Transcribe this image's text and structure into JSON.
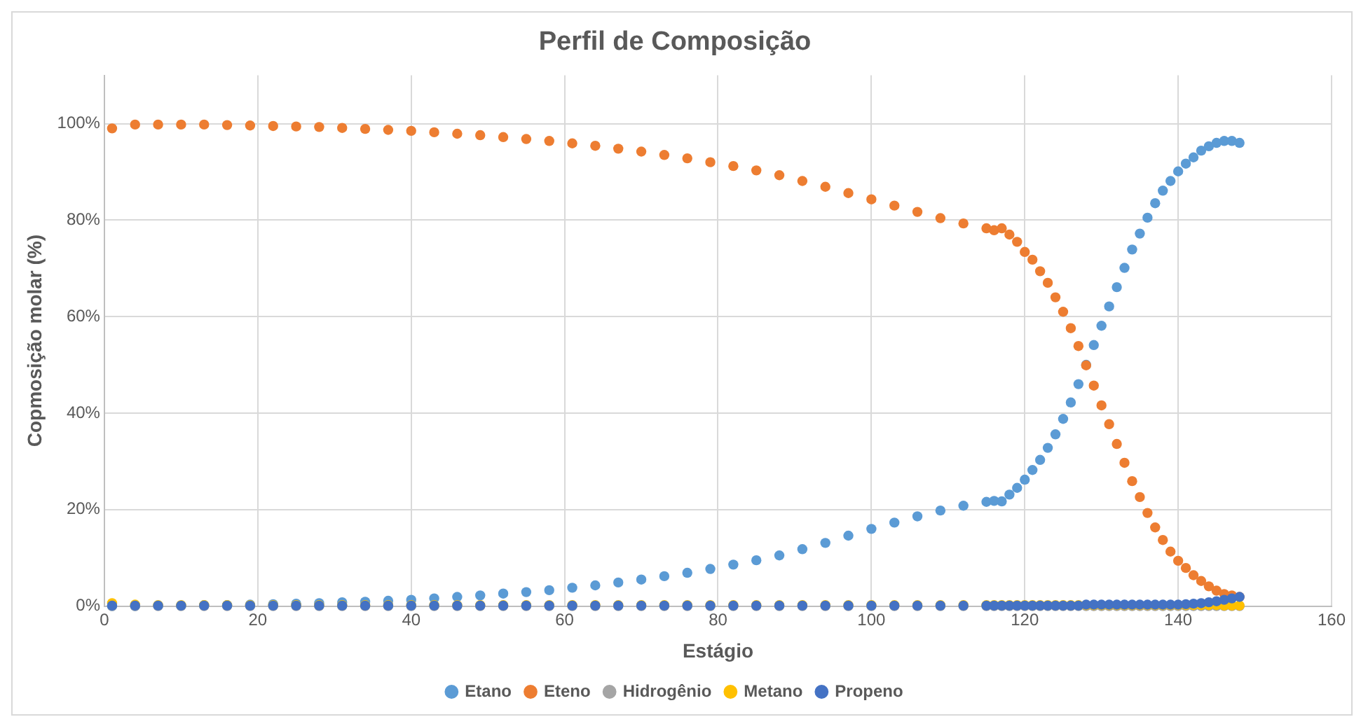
{
  "chart_data": {
    "type": "scatter",
    "title": "Perfil de Composição",
    "xlabel": "Estágio",
    "ylabel": "Copmosição molar (%)",
    "x": [
      1,
      4,
      7,
      10,
      13,
      16,
      19,
      22,
      25,
      28,
      31,
      34,
      37,
      40,
      43,
      46,
      49,
      52,
      55,
      58,
      61,
      64,
      67,
      70,
      73,
      76,
      79,
      82,
      85,
      88,
      91,
      94,
      97,
      100,
      103,
      106,
      109,
      112,
      115,
      116,
      117,
      118,
      119,
      120,
      121,
      122,
      123,
      124,
      125,
      126,
      127,
      128,
      129,
      130,
      131,
      132,
      133,
      134,
      135,
      136,
      137,
      138,
      139,
      140,
      141,
      142,
      143,
      144,
      145,
      146,
      147,
      148
    ],
    "series": [
      {
        "name": "Etano",
        "color": "#5b9bd5",
        "values": [
          0,
          0,
          0.1,
          0.1,
          0.2,
          0.2,
          0.3,
          0.4,
          0.5,
          0.6,
          0.8,
          0.9,
          1.1,
          1.3,
          1.6,
          1.9,
          2.2,
          2.6,
          2.9,
          3.3,
          3.8,
          4.3,
          4.9,
          5.5,
          6.2,
          6.9,
          7.7,
          8.6,
          9.5,
          10.5,
          11.8,
          13.1,
          14.6,
          16.0,
          17.3,
          18.6,
          19.8,
          20.8,
          21.6,
          21.8,
          21.7,
          23.1,
          24.5,
          26.2,
          28.2,
          30.3,
          32.8,
          35.6,
          38.8,
          42.2,
          46.0,
          50.0,
          54.1,
          58.1,
          62.1,
          66.1,
          70.1,
          73.9,
          77.2,
          80.5,
          83.5,
          86.1,
          88.1,
          90.1,
          91.7,
          93.0,
          94.4,
          95.3,
          96.0,
          96.4,
          96.4,
          96.0
        ]
      },
      {
        "name": "Eteno",
        "color": "#ed7d31",
        "values": [
          99.0,
          99.8,
          99.8,
          99.8,
          99.8,
          99.7,
          99.6,
          99.5,
          99.4,
          99.3,
          99.1,
          98.9,
          98.7,
          98.5,
          98.2,
          97.9,
          97.6,
          97.2,
          96.8,
          96.4,
          95.9,
          95.4,
          94.8,
          94.2,
          93.5,
          92.8,
          92.0,
          91.2,
          90.3,
          89.3,
          88.1,
          86.9,
          85.6,
          84.3,
          83.0,
          81.7,
          80.4,
          79.3,
          78.3,
          77.9,
          78.3,
          77.0,
          75.5,
          73.4,
          71.8,
          69.4,
          67.0,
          64.0,
          61.0,
          57.6,
          53.9,
          49.9,
          45.7,
          41.6,
          37.7,
          33.6,
          29.7,
          25.9,
          22.6,
          19.3,
          16.3,
          13.7,
          11.3,
          9.4,
          7.9,
          6.4,
          5.2,
          4.1,
          3.2,
          2.5,
          2.2,
          1.9
        ]
      },
      {
        "name": "Hidrogênio",
        "color": "#a5a5a5",
        "values": [
          0,
          0,
          0,
          0,
          0,
          0,
          0,
          0,
          0,
          0,
          0,
          0,
          0,
          0,
          0,
          0,
          0,
          0,
          0,
          0,
          0,
          0,
          0,
          0,
          0,
          0,
          0,
          0,
          0,
          0,
          0,
          0,
          0,
          0,
          0,
          0,
          0,
          0,
          0,
          0,
          0,
          0,
          0,
          0,
          0,
          0,
          0,
          0,
          0,
          0,
          0,
          0,
          0,
          0,
          0,
          0,
          0,
          0,
          0,
          0,
          0,
          0,
          0,
          0,
          0,
          0,
          0,
          0,
          0,
          0,
          0,
          0
        ]
      },
      {
        "name": "Metano",
        "color": "#ffc000",
        "values": [
          0.6,
          0.3,
          0.2,
          0.2,
          0.2,
          0.2,
          0.2,
          0.2,
          0.2,
          0.2,
          0.2,
          0.2,
          0.2,
          0.2,
          0.2,
          0.2,
          0.2,
          0.2,
          0.2,
          0.2,
          0.2,
          0.2,
          0.2,
          0.2,
          0.2,
          0.2,
          0.2,
          0.2,
          0.2,
          0.2,
          0.2,
          0.2,
          0.2,
          0.2,
          0.2,
          0.2,
          0.2,
          0.2,
          0.2,
          0.2,
          0.2,
          0.2,
          0.2,
          0.2,
          0.2,
          0.2,
          0.2,
          0.2,
          0.2,
          0.2,
          0.2,
          0.2,
          0.2,
          0.2,
          0.2,
          0.2,
          0.2,
          0.2,
          0.2,
          0.2,
          0.2,
          0.2,
          0.2,
          0.2,
          0.2,
          0.2,
          0.2,
          0.2,
          0.2,
          0.1,
          0.1,
          0.1
        ]
      },
      {
        "name": "Propeno",
        "color": "#4472c4",
        "values": [
          0.1,
          0.1,
          0.1,
          0.1,
          0.1,
          0.1,
          0.1,
          0.1,
          0.1,
          0.1,
          0.1,
          0.1,
          0.1,
          0.1,
          0.1,
          0.1,
          0.1,
          0.1,
          0.1,
          0.1,
          0.1,
          0.1,
          0.1,
          0.1,
          0.1,
          0.1,
          0.1,
          0.1,
          0.1,
          0.1,
          0.1,
          0.1,
          0.1,
          0.1,
          0.1,
          0.1,
          0.1,
          0.1,
          0.1,
          0.1,
          0.1,
          0.1,
          0.1,
          0.1,
          0.1,
          0.1,
          0.1,
          0.1,
          0.1,
          0.1,
          0.1,
          0.3,
          0.3,
          0.3,
          0.3,
          0.3,
          0.3,
          0.3,
          0.3,
          0.3,
          0.3,
          0.3,
          0.3,
          0.3,
          0.4,
          0.5,
          0.6,
          0.8,
          1.0,
          1.3,
          1.6,
          1.9
        ]
      }
    ],
    "xlim": [
      0,
      160
    ],
    "xticks": [
      0,
      20,
      40,
      60,
      80,
      100,
      120,
      140,
      160
    ],
    "ylim": [
      0,
      110
    ],
    "yticks": [
      {
        "value": 0,
        "label": "0%"
      },
      {
        "value": 20,
        "label": "20%"
      },
      {
        "value": 40,
        "label": "40%"
      },
      {
        "value": 60,
        "label": "60%"
      },
      {
        "value": 80,
        "label": "80%"
      },
      {
        "value": 100,
        "label": "100%"
      }
    ],
    "grid": true,
    "legend": "bottom",
    "marker": "circle"
  }
}
